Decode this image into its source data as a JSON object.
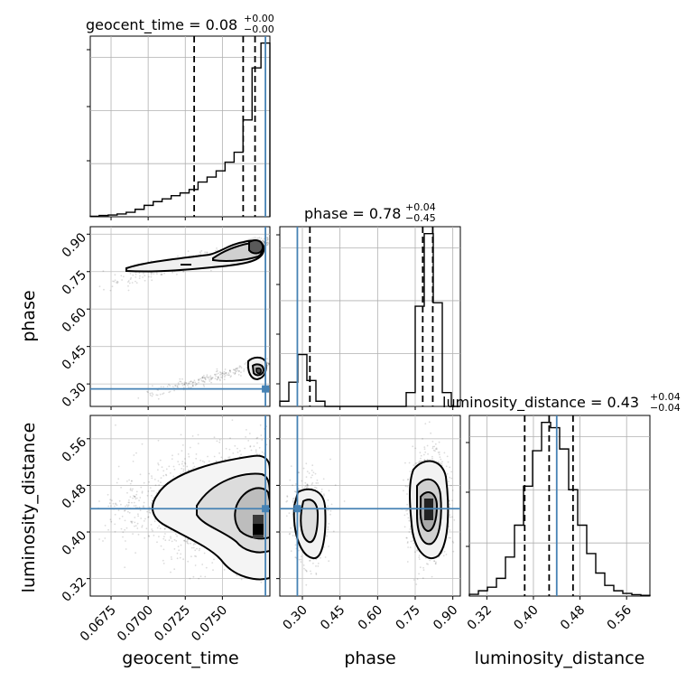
{
  "chart_data": {
    "type": "corner",
    "parameters": [
      "geocent_time",
      "phase",
      "luminosity_distance"
    ],
    "truths": {
      "geocent_time": 0.0779,
      "phase": 0.28,
      "luminosity_distance": 0.44
    },
    "axes": {
      "geocent_time": {
        "range": [
          0.0661,
          0.0782
        ],
        "ticks": [
          0.0675,
          0.07,
          0.0725,
          0.075
        ],
        "tick_labels": [
          "0.0675",
          "0.0700",
          "0.0725",
          "0.0750"
        ],
        "label": "geocent_time"
      },
      "phase": {
        "range": [
          0.21,
          0.93
        ],
        "ticks": [
          0.3,
          0.45,
          0.6,
          0.75,
          0.9
        ],
        "tick_labels": [
          "0.30",
          "0.45",
          "0.60",
          "0.75",
          "0.90"
        ],
        "label": "phase"
      },
      "luminosity_distance": {
        "range": [
          0.29,
          0.6
        ],
        "ticks": [
          0.32,
          0.4,
          0.48,
          0.56
        ],
        "tick_labels": [
          "0.32",
          "0.40",
          "0.48",
          "0.56"
        ],
        "label": "luminosity_distance"
      }
    },
    "titles": [
      {
        "param": "geocent_time",
        "base": "geocent_time = 0.08",
        "sup": "+0.00",
        "sub": "−0.00"
      },
      {
        "param": "phase",
        "base": "phase = 0.78",
        "sup": "+0.04",
        "sub": "−0.45"
      },
      {
        "param": "luminosity_distance",
        "base": "luminosity_distance = 0.43",
        "sup": "+0.04",
        "sub": "−0.04"
      }
    ],
    "quantiles": {
      "geocent_time": [
        0.0731,
        0.0764,
        0.0772
      ],
      "phase": [
        0.33,
        0.78,
        0.82
      ],
      "luminosity_distance": [
        0.385,
        0.427,
        0.468
      ]
    },
    "histograms": {
      "geocent_time": {
        "edges": [
          0.0661,
          0.0667,
          0.06731,
          0.06791,
          0.06852,
          0.06912,
          0.06973,
          0.07034,
          0.07094,
          0.07155,
          0.07215,
          0.07276,
          0.07336,
          0.07397,
          0.07458,
          0.07518,
          0.07579,
          0.07639,
          0.077,
          0.0776,
          0.0782
        ],
        "counts": [
          0.2,
          0.5,
          0.7,
          1.1,
          1.8,
          3,
          4.6,
          6.1,
          7.2,
          8.5,
          9.6,
          11,
          14,
          16,
          18.5,
          22,
          26,
          39,
          60,
          70
        ]
      },
      "phase": {
        "edges": [
          0.21,
          0.246,
          0.282,
          0.318,
          0.354,
          0.39,
          0.426,
          0.462,
          0.498,
          0.534,
          0.57,
          0.606,
          0.642,
          0.678,
          0.714,
          0.75,
          0.786,
          0.822,
          0.858,
          0.894,
          0.93
        ],
        "counts": [
          3,
          14,
          30,
          15,
          3,
          0,
          0,
          0,
          0,
          0,
          0,
          0,
          0,
          0,
          8,
          58,
          100,
          60,
          8,
          0
        ]
      },
      "luminosity_distance": {
        "edges": [
          0.29,
          0.3055,
          0.321,
          0.3365,
          0.352,
          0.3675,
          0.383,
          0.3985,
          0.414,
          0.4295,
          0.445,
          0.4605,
          0.476,
          0.4915,
          0.507,
          0.5225,
          0.538,
          0.5535,
          0.569,
          0.5845,
          0.6
        ],
        "counts": [
          1,
          3,
          5,
          10,
          22,
          40,
          62,
          82,
          98,
          95,
          83,
          60,
          40,
          24,
          13,
          6,
          3,
          1.5,
          0.8,
          0.4
        ]
      }
    },
    "grid": true,
    "truth_color": "#4682b4",
    "contour_color": "#000000"
  }
}
